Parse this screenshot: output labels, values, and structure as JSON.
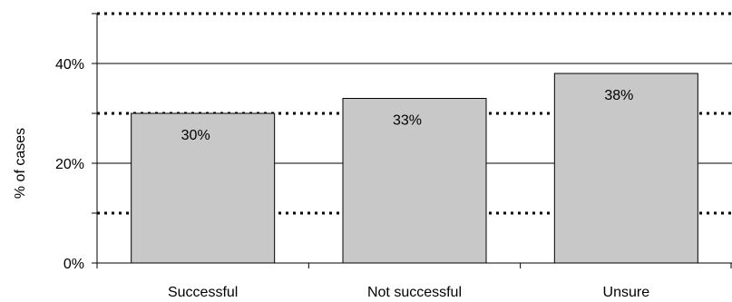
{
  "chart_data": {
    "type": "bar",
    "categories": [
      "Successful",
      "Not successful",
      "Unsure"
    ],
    "values": [
      30,
      33,
      38
    ],
    "data_labels": [
      "30%",
      "33%",
      "38%"
    ],
    "title": "",
    "xlabel": "",
    "ylabel": "% of cases",
    "ylim": [
      0,
      50
    ],
    "y_tick_values": [
      0,
      20,
      40
    ],
    "y_tick_labels": [
      "0%",
      "20%",
      "40%"
    ],
    "solid_gridlines": [
      20,
      40
    ],
    "dotted_gridlines": [
      10,
      30,
      50
    ],
    "legend": "none",
    "colors": {
      "bar_fill": "#c8c8c8",
      "bar_stroke": "#000000",
      "grid": "#000000"
    }
  }
}
